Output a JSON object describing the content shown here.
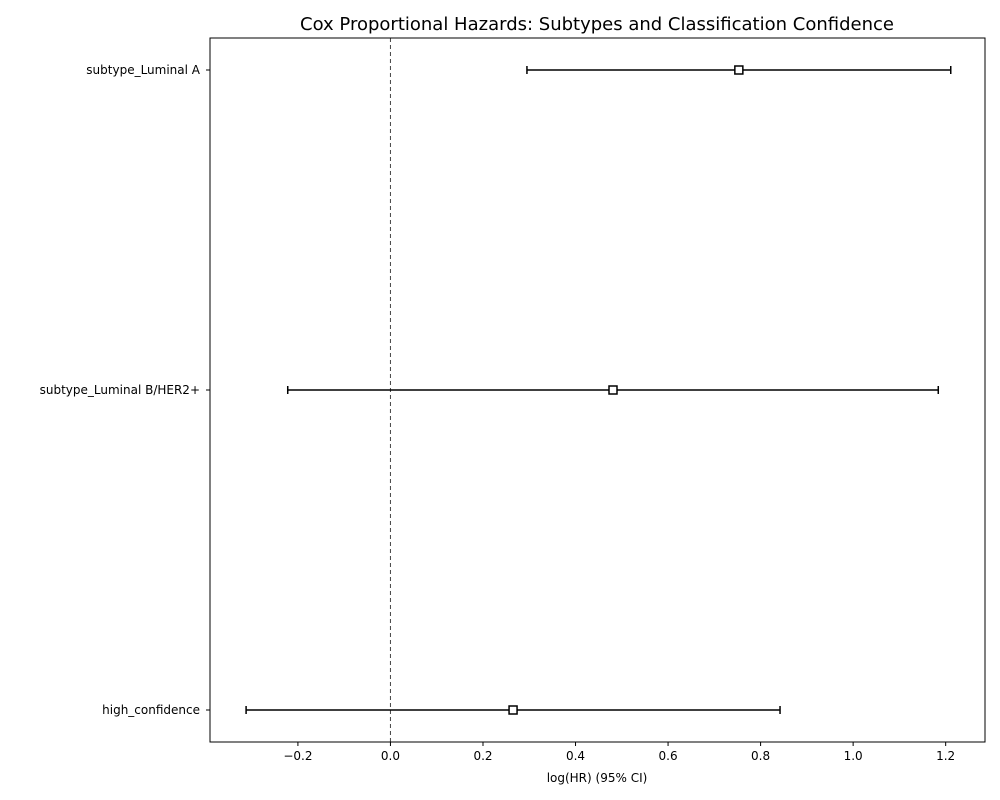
{
  "chart_data": {
    "type": "forest",
    "title": "Cox Proportional Hazards: Subtypes and Classification Confidence",
    "xlabel": "log(HR) (95% CI)",
    "ylabel": "",
    "xlim": [
      -0.39,
      1.285
    ],
    "xticks": [
      -0.2,
      0.0,
      0.2,
      0.4,
      0.6,
      0.8,
      1.0,
      1.2
    ],
    "xtick_labels": [
      "−0.2",
      "0.0",
      "0.2",
      "0.4",
      "0.6",
      "0.8",
      "1.0",
      "1.2"
    ],
    "reference_line": 0.0,
    "grid": false,
    "covariates": [
      {
        "label": "subtype_Luminal A",
        "coef": 0.753,
        "lower": 0.295,
        "upper": 1.211
      },
      {
        "label": "subtype_Luminal B/HER2+",
        "coef": 0.481,
        "lower": -0.222,
        "upper": 1.184
      },
      {
        "label": "high_confidence",
        "coef": 0.265,
        "lower": -0.312,
        "upper": 0.842
      }
    ]
  },
  "colors": {
    "marker_edge": "#000000",
    "marker_fill": "#ffffff",
    "errorbar": "#000000",
    "reference_line": "#444444",
    "axis": "#000000"
  }
}
